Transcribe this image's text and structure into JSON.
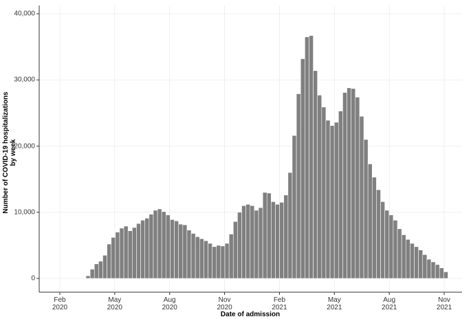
{
  "chart_data": {
    "type": "bar",
    "x_label": "Date of admission",
    "y_label": "Number of COVID-19 hospitalizations\nby week",
    "color": "#808080",
    "grid": true,
    "categories": [
      null,
      null,
      null,
      null,
      null,
      null,
      null,
      null,
      null,
      null,
      null,
      null,
      null,
      null,
      null,
      null,
      null,
      null,
      null,
      null,
      null,
      null,
      null,
      null,
      null,
      null,
      null,
      null,
      null,
      null,
      null,
      null,
      null,
      null,
      null,
      null,
      null,
      null,
      null,
      null,
      null,
      null,
      null,
      null,
      null,
      null,
      null,
      null,
      null,
      null,
      null,
      null,
      null,
      null,
      null,
      null,
      null,
      null,
      null,
      null,
      null,
      null,
      null,
      null,
      null,
      null,
      null,
      null,
      null,
      null,
      null,
      null,
      null,
      null,
      null,
      null,
      null,
      null,
      null,
      null,
      null,
      null,
      null,
      null,
      null,
      null
    ],
    "values": [
      400,
      1400,
      2200,
      2600,
      3500,
      5200,
      6200,
      7000,
      7600,
      7900,
      7200,
      7700,
      8300,
      8800,
      9100,
      9700,
      10300,
      10500,
      10100,
      9600,
      8900,
      8700,
      8200,
      8100,
      7300,
      6800,
      6300,
      6000,
      5700,
      5300,
      4800,
      5000,
      4900,
      5300,
      6700,
      8600,
      10000,
      11000,
      11200,
      11000,
      10300,
      10700,
      13000,
      12900,
      11600,
      11200,
      11500,
      12600,
      16000,
      21600,
      27900,
      33200,
      36500,
      36700,
      31400,
      27700,
      25900,
      23900,
      23100,
      23600,
      25300,
      28100,
      28800,
      28700,
      27400,
      24500,
      21000,
      17300,
      15300,
      13400,
      11600,
      10300,
      9600,
      8800,
      7500,
      6600,
      5900,
      5300,
      4800,
      4300,
      3600,
      2900,
      2500,
      2100,
      1600,
      1000
    ],
    "ylim": [
      0,
      40000
    ],
    "yticks": [
      0,
      {
        "value": 10000,
        "label": "10,000"
      },
      {
        "value": 20000,
        "label": "20,000"
      },
      {
        "value": 30000,
        "label": "30,000"
      },
      {
        "value": 40000,
        "label": "40,000"
      }
    ],
    "xticks": [
      {
        "value": "2020-02",
        "label": "Feb\n2020"
      },
      {
        "value": "2020-05",
        "label": "May\n2020"
      },
      {
        "value": "2020-08",
        "label": "Aug\n2020"
      },
      {
        "value": "2020-11",
        "label": "Nov\n2020"
      },
      {
        "value": "2021-02",
        "label": "Feb\n2021"
      },
      {
        "value": "2021-05",
        "label": "May\n2021"
      },
      {
        "value": "2021-08",
        "label": "Aug\n2021"
      },
      {
        "value": "2021-11",
        "label": "Nov\n2021"
      }
    ]
  }
}
